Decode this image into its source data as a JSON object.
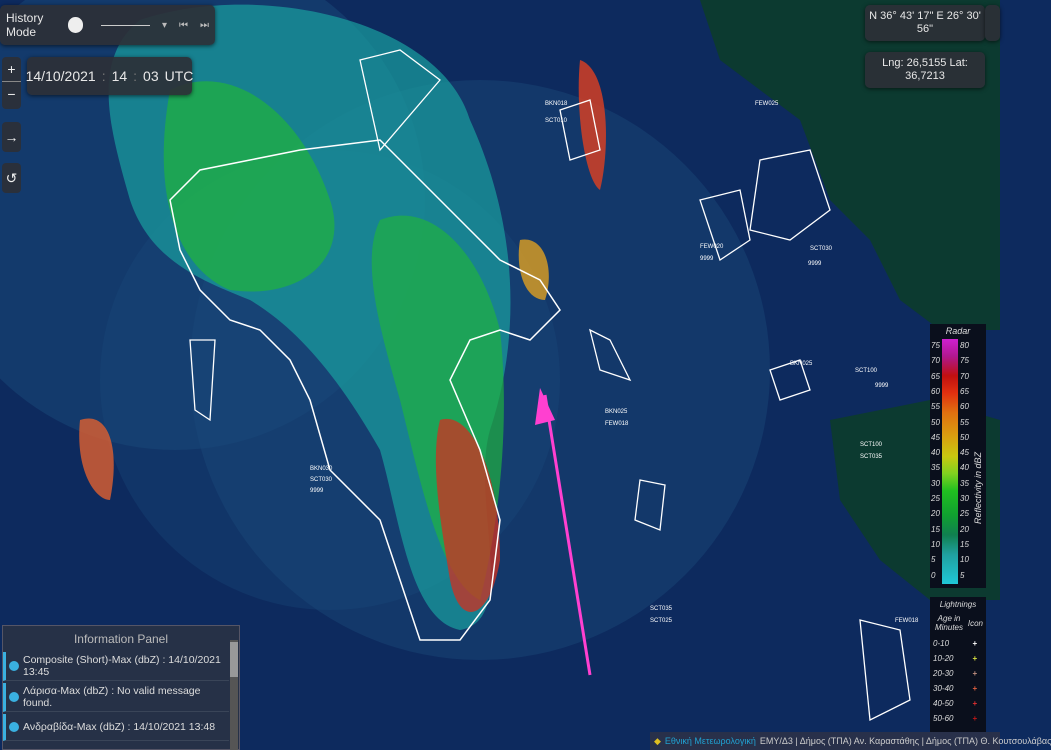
{
  "history": {
    "label": "History Mode",
    "enabled": false
  },
  "time": {
    "date": "14/10/2021",
    "hour": "14",
    "minute": "03",
    "zone": "UTC"
  },
  "controls": {
    "zoom_in": "+",
    "zoom_out": "−",
    "arrow": "→",
    "reset": "↺"
  },
  "coords": {
    "dms": "N 36° 43' 17\" E 26° 30' 56\"",
    "decimal": "Lng: 26,5155 Lat: 36,7213"
  },
  "icons": {
    "layers": "layers-icon",
    "prev": "skip-back-icon",
    "next": "skip-forward-icon"
  },
  "radar_legend": {
    "title": "Radar",
    "axis": "Reflectivity in dBZ",
    "left": [
      "75",
      "70",
      "65",
      "60",
      "55",
      "50",
      "45",
      "40",
      "35",
      "30",
      "25",
      "20",
      "15",
      "10",
      "5",
      "0"
    ],
    "right": [
      "80",
      "75",
      "70",
      "65",
      "60",
      "55",
      "50",
      "45",
      "40",
      "35",
      "30",
      "25",
      "20",
      "15",
      "10",
      "5"
    ]
  },
  "lightning_legend": {
    "title": "Lightnings",
    "col1": "Age in Minutes",
    "col2": "Icon",
    "rows": [
      {
        "age": "0-10",
        "color": "#ffffff"
      },
      {
        "age": "10-20",
        "color": "#d8e040"
      },
      {
        "age": "20-30",
        "color": "#c09080"
      },
      {
        "age": "30-40",
        "color": "#e06040"
      },
      {
        "age": "40-50",
        "color": "#e03030"
      },
      {
        "age": "50-60",
        "color": "#c01818"
      }
    ]
  },
  "info_panel": {
    "title": "Information Panel",
    "items": [
      "Composite (Short)-Max (dbZ) : 14/10/2021 13:45",
      "Λάρισα-Max (dbZ) : No valid message found.",
      "Ανδραβίδα-Max (dbZ) : 14/10/2021 13:48"
    ]
  },
  "credits": {
    "brand": "Εθνική Μετεωρολογική",
    "text": "ΕΜΥ/Δ3 | Δήμος (ΤΠΑ) Αν. Καραστάθης | Δήμος (ΤΠΑ) Θ. Κουτσουλάβας"
  },
  "map_labels": [
    "BKN018",
    "SCT010",
    "FEW020",
    "SCT030",
    "SCT100",
    "SCT035",
    "BKN025",
    "FEW018",
    "9999"
  ],
  "colors": {
    "sea": "#0d2a5e",
    "land": "#0c3a30",
    "arrow": "#ff40d0",
    "coast": "#ffffff"
  }
}
